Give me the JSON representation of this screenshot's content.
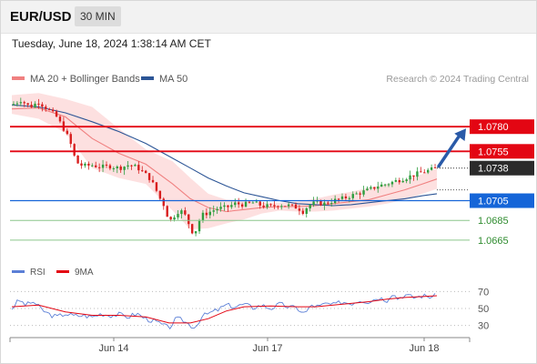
{
  "header": {
    "symbol": "EUR/USD",
    "timeframe": "30 MIN",
    "datetime": "Tuesday, June 18, 2024 1:38:14 AM CET"
  },
  "legend": {
    "ma20_label": "MA 20 + Bollinger Bands",
    "ma50_label": "MA 50",
    "credit": "Research © 2024 Trading Central",
    "rsi_label": "RSI",
    "ma9_label": "9MA"
  },
  "colors": {
    "ma20": "#f08080",
    "ma50": "#2c5596",
    "bollinger_fill": "#fde0e0",
    "resistance": "#e30613",
    "support": "#1565d8",
    "target": "#8cc68c",
    "up_candle": "#2e9e3f",
    "down_candle": "#d81e1e",
    "arrow": "#2a5aa8",
    "rsi": "#5b7fd6",
    "rsi_ma": "#e30613"
  },
  "chart_data": [
    {
      "type": "candlestick",
      "title": "EUR/USD",
      "xlabel": "",
      "ylabel": "",
      "x_ticks": [
        "Jun 14",
        "Jun 17",
        "Jun 18"
      ],
      "ylim": [
        1.0652,
        1.0818
      ],
      "grid": false,
      "legend_position": "top-left",
      "levels": [
        {
          "value": 1.078,
          "label": "1.0780",
          "kind": "resistance"
        },
        {
          "value": 1.0755,
          "label": "1.0755",
          "kind": "resistance"
        },
        {
          "value": 1.0738,
          "label": "1.0738",
          "kind": "current"
        },
        {
          "value": 1.0705,
          "label": "1.0705",
          "kind": "support"
        },
        {
          "value": 1.0685,
          "label": "1.0685",
          "kind": "target"
        },
        {
          "value": 1.0665,
          "label": "1.0665",
          "kind": "target"
        }
      ],
      "projection": {
        "from": 1.0738,
        "to": 1.078
      },
      "price_path": [
        [
          0,
          1.0802
        ],
        [
          5,
          1.0807
        ],
        [
          10,
          1.08
        ],
        [
          15,
          1.0805
        ],
        [
          20,
          1.0798
        ],
        [
          25,
          1.079
        ],
        [
          30,
          1.0775
        ],
        [
          33,
          1.0762
        ],
        [
          36,
          1.0744
        ],
        [
          40,
          1.074
        ],
        [
          45,
          1.0741
        ],
        [
          50,
          1.0739
        ],
        [
          55,
          1.074
        ],
        [
          60,
          1.0738
        ],
        [
          65,
          1.0741
        ],
        [
          70,
          1.0739
        ],
        [
          74,
          1.0733
        ],
        [
          77,
          1.0728
        ],
        [
          80,
          1.0719
        ],
        [
          83,
          1.0707
        ],
        [
          86,
          1.0698
        ],
        [
          88,
          1.0683
        ],
        [
          91,
          1.069
        ],
        [
          94,
          1.0696
        ],
        [
          97,
          1.069
        ],
        [
          100,
          1.0678
        ],
        [
          102,
          1.067
        ],
        [
          104,
          1.068
        ],
        [
          106,
          1.069
        ],
        [
          110,
          1.0693
        ],
        [
          115,
          1.0697
        ],
        [
          120,
          1.0698
        ],
        [
          125,
          1.0702
        ],
        [
          130,
          1.0701
        ],
        [
          135,
          1.0703
        ],
        [
          140,
          1.07
        ],
        [
          145,
          1.0699
        ],
        [
          150,
          1.0701
        ],
        [
          155,
          1.07
        ],
        [
          160,
          1.0698
        ],
        [
          163,
          1.0694
        ],
        [
          166,
          1.07
        ],
        [
          170,
          1.0703
        ],
        [
          175,
          1.0702
        ],
        [
          180,
          1.0705
        ],
        [
          185,
          1.0707
        ],
        [
          190,
          1.071
        ],
        [
          195,
          1.0713
        ],
        [
          200,
          1.0716
        ],
        [
          205,
          1.072
        ],
        [
          210,
          1.0722
        ],
        [
          215,
          1.0725
        ],
        [
          220,
          1.0728
        ],
        [
          225,
          1.0731
        ],
        [
          230,
          1.0734
        ],
        [
          234,
          1.0736
        ],
        [
          238,
          1.0738
        ]
      ],
      "ma20_path": [
        [
          0,
          1.0798
        ],
        [
          15,
          1.0799
        ],
        [
          30,
          1.079
        ],
        [
          45,
          1.0768
        ],
        [
          60,
          1.0753
        ],
        [
          75,
          1.0742
        ],
        [
          90,
          1.0722
        ],
        [
          100,
          1.0707
        ],
        [
          110,
          1.0698
        ],
        [
          120,
          1.0694
        ],
        [
          130,
          1.0696
        ],
        [
          140,
          1.0698
        ],
        [
          150,
          1.0699
        ],
        [
          160,
          1.0699
        ],
        [
          170,
          1.07
        ],
        [
          180,
          1.0702
        ],
        [
          190,
          1.0704
        ],
        [
          200,
          1.0706
        ],
        [
          210,
          1.0711
        ],
        [
          220,
          1.0716
        ],
        [
          230,
          1.0722
        ],
        [
          238,
          1.0727
        ]
      ],
      "ma50_path": [
        [
          0,
          1.0802
        ],
        [
          15,
          1.08
        ],
        [
          30,
          1.0794
        ],
        [
          45,
          1.0785
        ],
        [
          60,
          1.0775
        ],
        [
          75,
          1.0763
        ],
        [
          90,
          1.0748
        ],
        [
          100,
          1.0738
        ],
        [
          110,
          1.0728
        ],
        [
          120,
          1.072
        ],
        [
          130,
          1.0713
        ],
        [
          140,
          1.0709
        ],
        [
          150,
          1.0705
        ],
        [
          160,
          1.0702
        ],
        [
          170,
          1.0701
        ],
        [
          180,
          1.07
        ],
        [
          190,
          1.0701
        ],
        [
          200,
          1.0703
        ],
        [
          210,
          1.0705
        ],
        [
          220,
          1.0707
        ],
        [
          230,
          1.071
        ],
        [
          238,
          1.0712
        ]
      ],
      "bollinger_upper": [
        [
          0,
          1.0812
        ],
        [
          15,
          1.0814
        ],
        [
          30,
          1.0808
        ],
        [
          45,
          1.08
        ],
        [
          60,
          1.0778
        ],
        [
          75,
          1.0757
        ],
        [
          90,
          1.0745
        ],
        [
          100,
          1.0728
        ],
        [
          110,
          1.0712
        ],
        [
          120,
          1.0706
        ],
        [
          130,
          1.0705
        ],
        [
          140,
          1.0703
        ],
        [
          150,
          1.0703
        ],
        [
          160,
          1.0704
        ],
        [
          170,
          1.0707
        ],
        [
          180,
          1.0711
        ],
        [
          190,
          1.0714
        ],
        [
          200,
          1.0718
        ],
        [
          210,
          1.0722
        ],
        [
          220,
          1.0726
        ],
        [
          230,
          1.0732
        ],
        [
          238,
          1.0738
        ]
      ],
      "bollinger_lower": [
        [
          0,
          1.0793
        ],
        [
          15,
          1.0788
        ],
        [
          30,
          1.0774
        ],
        [
          45,
          1.0738
        ],
        [
          60,
          1.0728
        ],
        [
          75,
          1.0722
        ],
        [
          90,
          1.0695
        ],
        [
          100,
          1.0676
        ],
        [
          110,
          1.0677
        ],
        [
          120,
          1.0682
        ],
        [
          130,
          1.0686
        ],
        [
          140,
          1.0692
        ],
        [
          150,
          1.0695
        ],
        [
          160,
          1.0694
        ],
        [
          170,
          1.0694
        ],
        [
          180,
          1.0695
        ],
        [
          190,
          1.0697
        ],
        [
          200,
          1.0699
        ],
        [
          210,
          1.0702
        ],
        [
          220,
          1.0706
        ],
        [
          230,
          1.0712
        ],
        [
          238,
          1.0717
        ]
      ]
    },
    {
      "type": "line",
      "title": "RSI",
      "xlabel": "",
      "ylabel": "",
      "ylim": [
        20,
        80
      ],
      "y_ticks": [
        70,
        50,
        30
      ],
      "grid": false,
      "legend_position": "top-left",
      "series": [
        {
          "name": "RSI",
          "values": [
            [
              0,
              50
            ],
            [
              4,
              60
            ],
            [
              8,
              54
            ],
            [
              12,
              58
            ],
            [
              16,
              50
            ],
            [
              20,
              44
            ],
            [
              25,
              40
            ],
            [
              30,
              44
            ],
            [
              35,
              41
            ],
            [
              40,
              42
            ],
            [
              45,
              40
            ],
            [
              50,
              44
            ],
            [
              55,
              42
            ],
            [
              60,
              43
            ],
            [
              65,
              40
            ],
            [
              70,
              44
            ],
            [
              75,
              38
            ],
            [
              80,
              35
            ],
            [
              85,
              30
            ],
            [
              88,
              27
            ],
            [
              92,
              38
            ],
            [
              96,
              36
            ],
            [
              100,
              30
            ],
            [
              103,
              28
            ],
            [
              106,
              40
            ],
            [
              110,
              44
            ],
            [
              115,
              48
            ],
            [
              120,
              54
            ],
            [
              125,
              52
            ],
            [
              130,
              55
            ],
            [
              135,
              51
            ],
            [
              140,
              54
            ],
            [
              145,
              50
            ],
            [
              150,
              55
            ],
            [
              155,
              52
            ],
            [
              160,
              50
            ],
            [
              164,
              44
            ],
            [
              168,
              54
            ],
            [
              172,
              52
            ],
            [
              176,
              56
            ],
            [
              180,
              54
            ],
            [
              185,
              58
            ],
            [
              190,
              56
            ],
            [
              195,
              60
            ],
            [
              200,
              58
            ],
            [
              205,
              63
            ],
            [
              210,
              60
            ],
            [
              213,
              68
            ],
            [
              216,
              62
            ],
            [
              220,
              66
            ],
            [
              225,
              63
            ],
            [
              230,
              65
            ],
            [
              234,
              64
            ],
            [
              238,
              65
            ]
          ]
        },
        {
          "name": "9MA",
          "values": [
            [
              0,
              52
            ],
            [
              15,
              54
            ],
            [
              30,
              46
            ],
            [
              45,
              42
            ],
            [
              60,
              42
            ],
            [
              75,
              40
            ],
            [
              88,
              33
            ],
            [
              100,
              33
            ],
            [
              110,
              38
            ],
            [
              120,
              47
            ],
            [
              130,
              52
            ],
            [
              145,
              53
            ],
            [
              160,
              52
            ],
            [
              170,
              52
            ],
            [
              180,
              54
            ],
            [
              190,
              56
            ],
            [
              200,
              58
            ],
            [
              210,
              61
            ],
            [
              220,
              63
            ],
            [
              230,
              64
            ],
            [
              238,
              65
            ]
          ]
        }
      ]
    }
  ]
}
